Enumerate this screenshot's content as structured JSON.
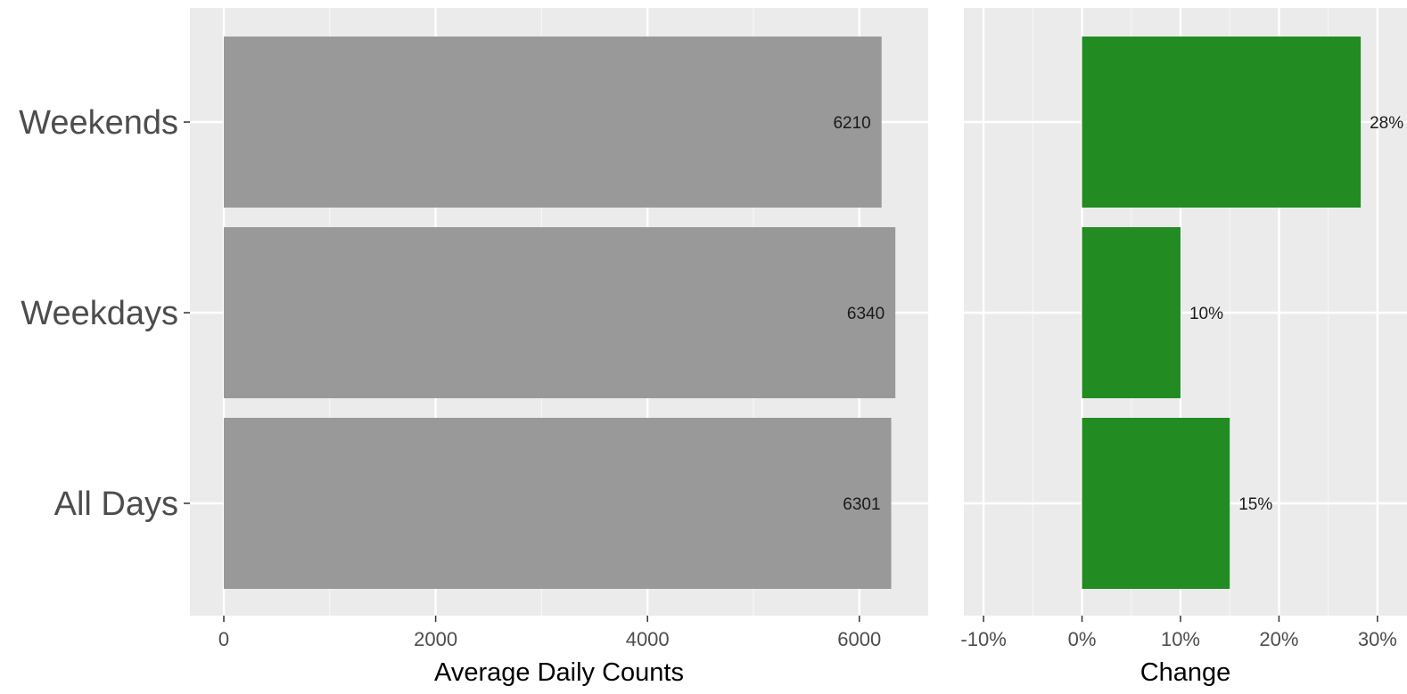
{
  "chart_data": [
    {
      "type": "bar",
      "orientation": "horizontal",
      "categories": [
        "Weekends",
        "Weekdays",
        "All Days"
      ],
      "values": [
        6210,
        6340,
        6301
      ],
      "data_labels": [
        "6210",
        "6340",
        "6301"
      ],
      "xlabel": "Average Daily Counts",
      "ylabel": "",
      "xlim": [
        -320,
        6650
      ],
      "xticks": [
        0,
        2000,
        4000,
        6000
      ],
      "xtick_labels": [
        "0",
        "2000",
        "4000",
        "6000"
      ],
      "grid": true,
      "legend": "none",
      "bar_color": "#999999"
    },
    {
      "type": "bar",
      "orientation": "horizontal",
      "categories": [
        "Weekends",
        "Weekdays",
        "All Days"
      ],
      "values": [
        28.3,
        10,
        15
      ],
      "data_labels": [
        "28%",
        "10%",
        "15%"
      ],
      "xlabel": "Change",
      "ylabel": "",
      "xlim": [
        -12,
        33
      ],
      "xticks": [
        -10,
        0,
        10,
        20,
        30
      ],
      "xtick_labels": [
        "-10%",
        "0%",
        "10%",
        "20%",
        "30%"
      ],
      "grid": true,
      "legend": "none",
      "bar_color": "#228b22"
    }
  ],
  "colors": {
    "panel_background": "#ebebeb",
    "grid_major": "#ffffff",
    "grid_minor": "#f5f5f5",
    "gray_bar": "#999999",
    "green_bar": "#228b22"
  }
}
